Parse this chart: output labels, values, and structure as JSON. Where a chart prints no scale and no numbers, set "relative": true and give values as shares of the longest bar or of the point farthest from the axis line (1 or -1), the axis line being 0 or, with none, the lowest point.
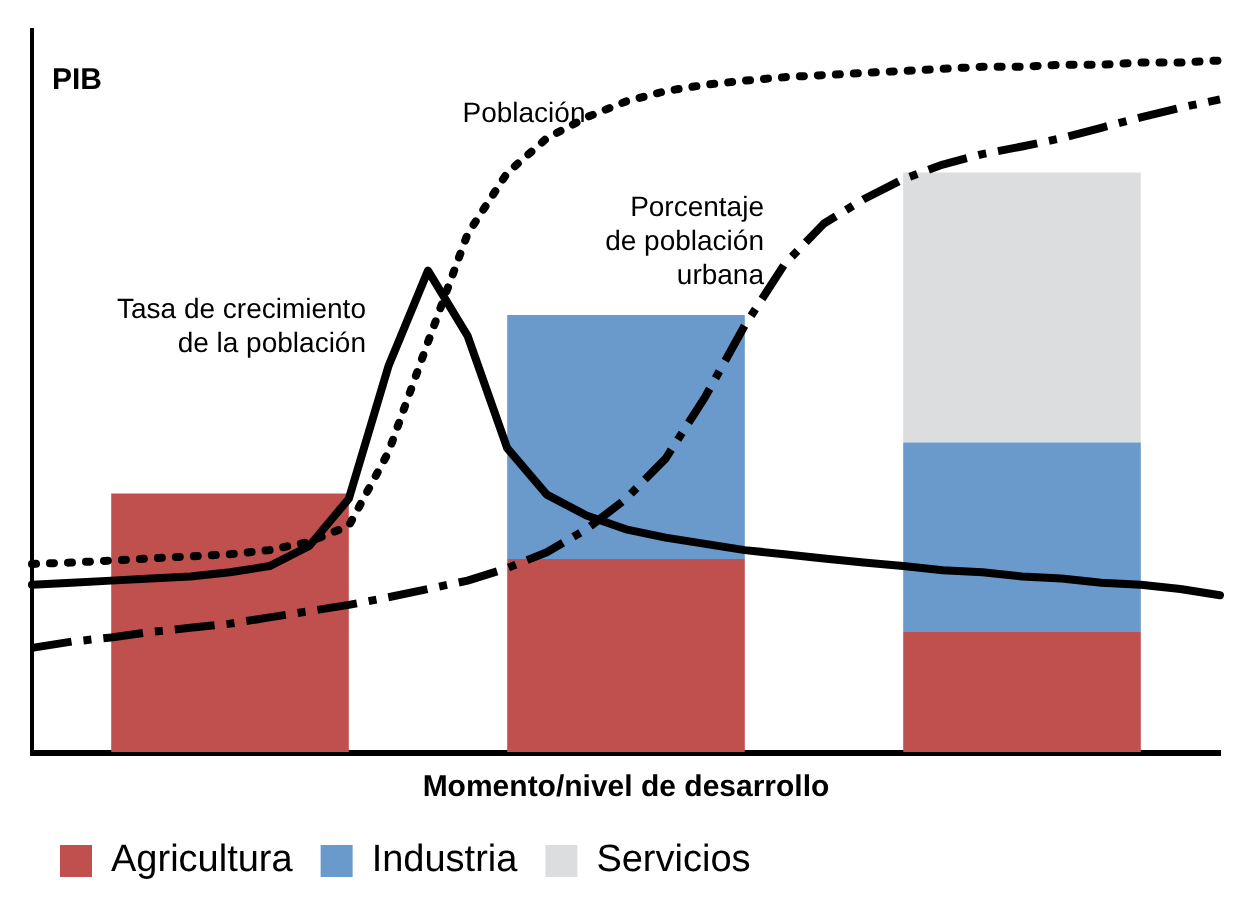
{
  "chart_data": [
    {
      "type": "bar",
      "relative": true,
      "stacked": true,
      "xlabel": "Momento/nivel de desarrollo",
      "ylabel": "PIB",
      "categories": [
        null,
        null,
        null
      ],
      "legend": "bottom",
      "tick_labels": false,
      "series": [
        {
          "name": "Agricultura",
          "color": "#c0504d",
          "values": [
            0.446,
            0.333,
            0.207
          ]
        },
        {
          "name": "Industria",
          "color": "#6a99cb",
          "values": [
            null,
            0.421,
            0.327
          ]
        },
        {
          "name": "Servicios",
          "color": "#dcdddf",
          "values": [
            null,
            null,
            0.466
          ]
        }
      ]
    },
    {
      "type": "line",
      "relative": true,
      "tick_labels": false,
      "categories": [
        null,
        null,
        null,
        null,
        null,
        null,
        null,
        null,
        null,
        null,
        null,
        null,
        null,
        null,
        null,
        null,
        null,
        null,
        null,
        null,
        null,
        null,
        null,
        null,
        null,
        null,
        null,
        null,
        null,
        null,
        null
      ],
      "series": [
        {
          "name": "Tasa de crecimiento de la población",
          "color": "#000000",
          "line_style": "solid",
          "values": [
            0.244,
            0.247,
            0.25,
            0.253,
            0.256,
            0.262,
            0.271,
            0.3,
            0.368,
            0.559,
            0.697,
            0.603,
            0.441,
            0.374,
            0.344,
            0.324,
            0.312,
            0.303,
            0.294,
            0.288,
            0.282,
            0.276,
            0.271,
            0.265,
            0.262,
            0.256,
            0.253,
            0.247,
            0.244,
            0.238,
            0.229
          ]
        },
        {
          "name": "Población",
          "color": "#000000",
          "line_style": "dotted",
          "values": [
            0.274,
            0.276,
            0.279,
            0.282,
            0.285,
            0.288,
            0.294,
            0.306,
            0.329,
            0.435,
            0.594,
            0.75,
            0.838,
            0.888,
            0.918,
            0.941,
            0.956,
            0.965,
            0.971,
            0.976,
            0.979,
            0.982,
            0.985,
            0.988,
            0.991,
            0.991,
            0.994,
            0.994,
            0.997,
            0.997,
            1.0
          ]
        },
        {
          "name": "Porcentaje de población urbana",
          "color": "#000000",
          "line_style": "dashed",
          "values": [
            0.153,
            0.162,
            0.168,
            0.176,
            0.182,
            0.188,
            0.197,
            0.206,
            0.215,
            0.226,
            0.238,
            0.25,
            0.268,
            0.291,
            0.324,
            0.368,
            0.426,
            0.515,
            0.618,
            0.706,
            0.765,
            0.8,
            0.829,
            0.85,
            0.865,
            0.876,
            0.888,
            0.903,
            0.918,
            0.932,
            0.944
          ]
        }
      ]
    }
  ]
}
